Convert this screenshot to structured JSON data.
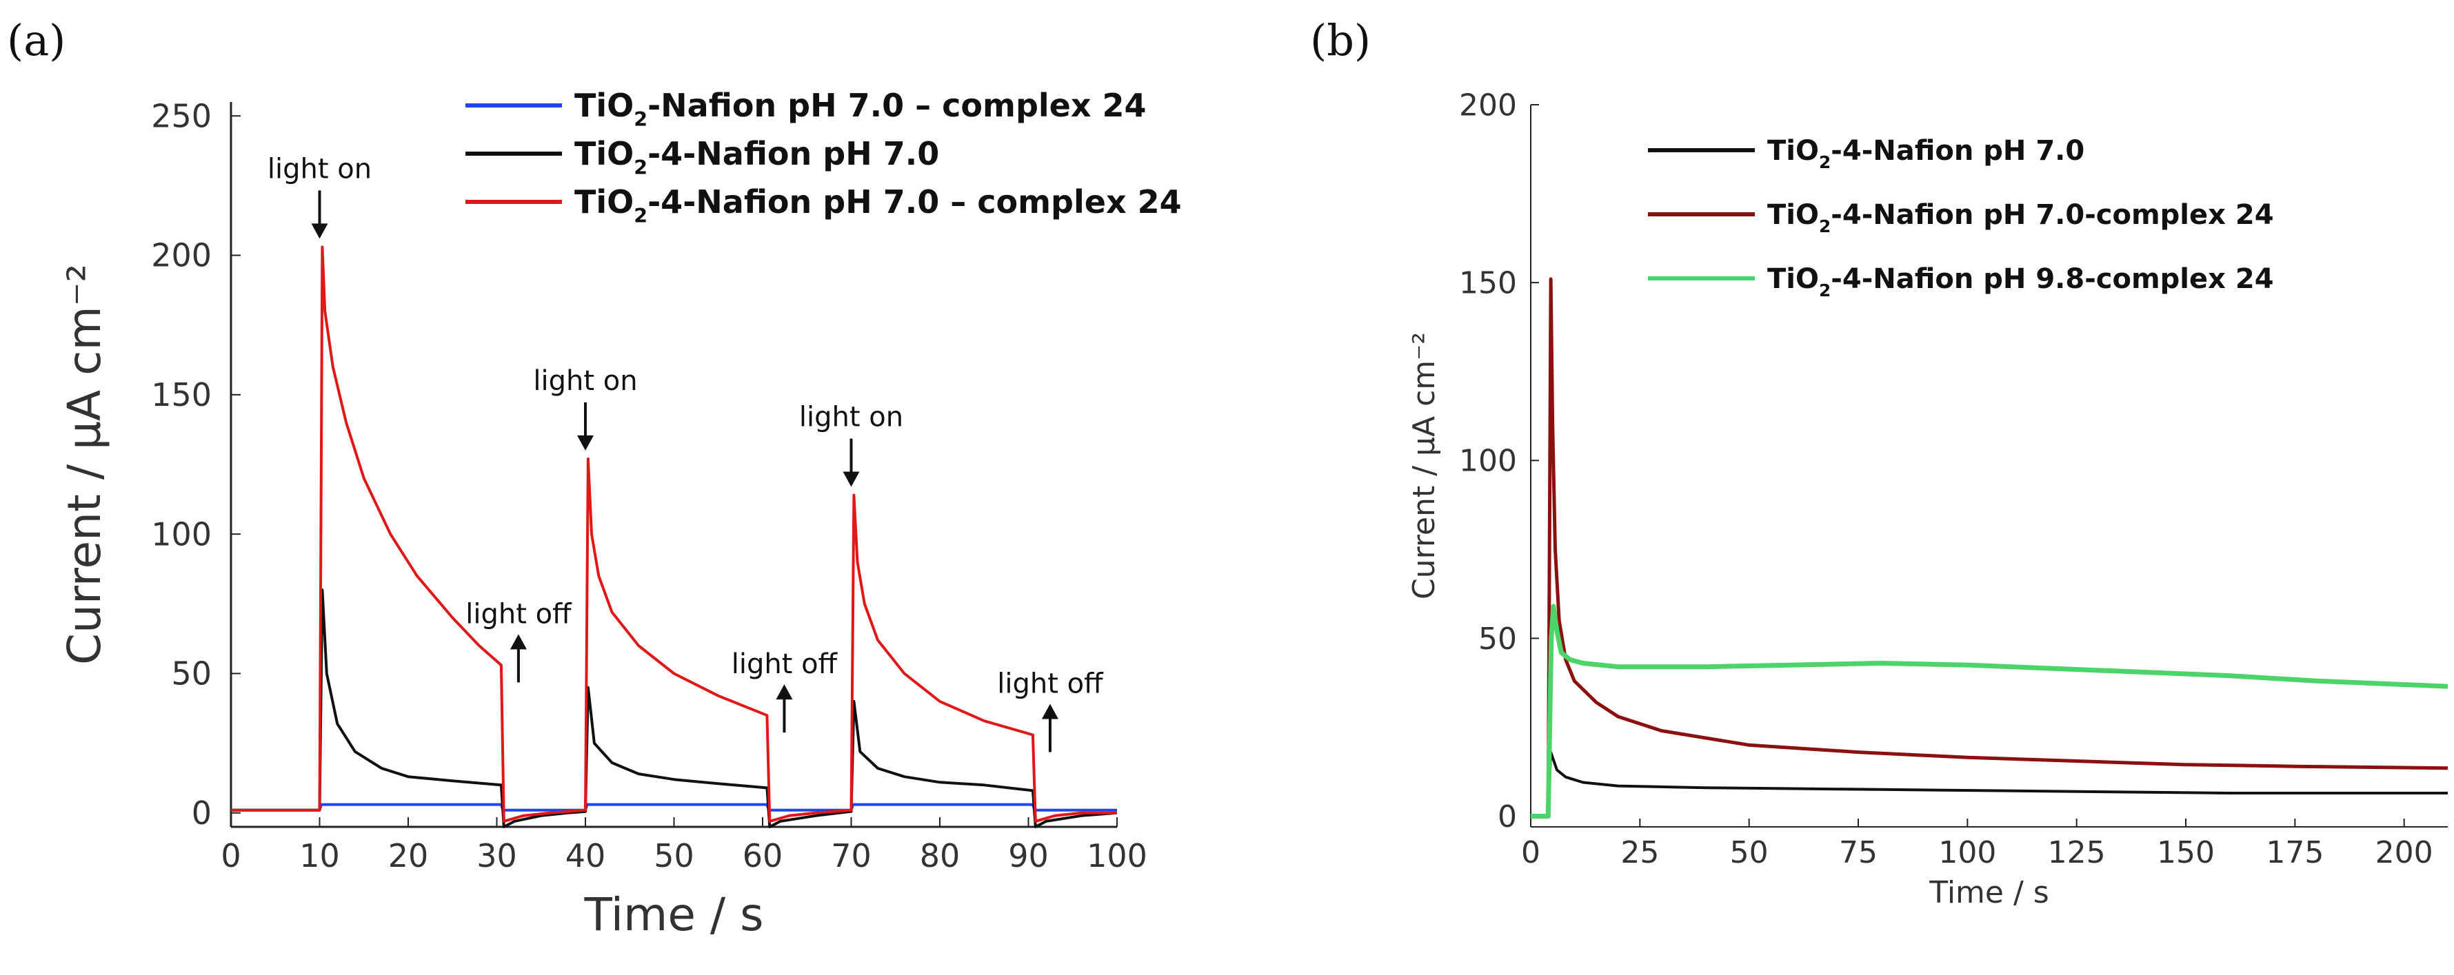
{
  "chart_data": [
    {
      "type": "line",
      "panel_label": "(a)",
      "title": "",
      "xlabel": "Time / s",
      "ylabel": "Current / µA cm⁻²",
      "xlim": [
        0,
        100
      ],
      "ylim": [
        -5,
        255
      ],
      "xticks": [
        0,
        10,
        20,
        30,
        40,
        50,
        60,
        70,
        80,
        90,
        100
      ],
      "yticks": [
        0,
        50,
        100,
        150,
        200,
        250
      ],
      "grid": false,
      "legend_position": "top-right",
      "series": [
        {
          "name": "TiO₂-Nafion pH 7.0 – complex 24",
          "label_parts": [
            "TiO",
            "2",
            "-Nafion pH 7.0 – complex 24"
          ],
          "color": "#2244ee",
          "points": [
            [
              0,
              1
            ],
            [
              10,
              1
            ],
            [
              10.2,
              3
            ],
            [
              30.5,
              3
            ],
            [
              30.7,
              1
            ],
            [
              40,
              1
            ],
            [
              40.2,
              3
            ],
            [
              60.5,
              3
            ],
            [
              60.7,
              1
            ],
            [
              70,
              1
            ],
            [
              70.2,
              3
            ],
            [
              90.5,
              3
            ],
            [
              90.7,
              1
            ],
            [
              100,
              1
            ]
          ]
        },
        {
          "name": "TiO₂-4-Nafion pH 7.0",
          "label_parts": [
            "TiO",
            "2",
            "-4-Nafion pH 7.0"
          ],
          "color": "#111111",
          "points": [
            [
              0,
              1
            ],
            [
              10,
              1
            ],
            [
              10.3,
              80
            ],
            [
              10.8,
              50
            ],
            [
              12,
              32
            ],
            [
              14,
              22
            ],
            [
              17,
              16
            ],
            [
              20,
              13
            ],
            [
              25,
              11.5
            ],
            [
              30.5,
              10
            ],
            [
              30.8,
              -5
            ],
            [
              32,
              -3
            ],
            [
              35,
              -1
            ],
            [
              38,
              0
            ],
            [
              40,
              0.5
            ],
            [
              40.3,
              45
            ],
            [
              41,
              25
            ],
            [
              43,
              18
            ],
            [
              46,
              14
            ],
            [
              50,
              12
            ],
            [
              55,
              10.5
            ],
            [
              60.5,
              9
            ],
            [
              60.8,
              -5
            ],
            [
              62,
              -3
            ],
            [
              66,
              -1
            ],
            [
              70,
              0.5
            ],
            [
              70.3,
              40
            ],
            [
              71,
              22
            ],
            [
              73,
              16
            ],
            [
              76,
              13
            ],
            [
              80,
              11
            ],
            [
              85,
              10
            ],
            [
              90.5,
              8
            ],
            [
              90.8,
              -5
            ],
            [
              92,
              -3
            ],
            [
              96,
              -1
            ],
            [
              100,
              0
            ]
          ]
        },
        {
          "name": "TiO₂-4-Nafion pH 7.0 – complex 24",
          "label_parts": [
            "TiO",
            "2",
            "-4-Nafion pH 7.0 – complex 24"
          ],
          "color": "#e01818",
          "points": [
            [
              0,
              1
            ],
            [
              10,
              1
            ],
            [
              10.3,
              203
            ],
            [
              10.6,
              180
            ],
            [
              11.5,
              160
            ],
            [
              13,
              140
            ],
            [
              15,
              120
            ],
            [
              18,
              100
            ],
            [
              21,
              85
            ],
            [
              25,
              70
            ],
            [
              28,
              60
            ],
            [
              30.5,
              53
            ],
            [
              30.8,
              -3
            ],
            [
              33,
              -1
            ],
            [
              36,
              0
            ],
            [
              40,
              1
            ],
            [
              40.3,
              127
            ],
            [
              40.7,
              100
            ],
            [
              41.5,
              85
            ],
            [
              43,
              72
            ],
            [
              46,
              60
            ],
            [
              50,
              50
            ],
            [
              55,
              42
            ],
            [
              60.5,
              35
            ],
            [
              60.8,
              -3
            ],
            [
              63,
              -1
            ],
            [
              66,
              0
            ],
            [
              70,
              1
            ],
            [
              70.3,
              114
            ],
            [
              70.7,
              90
            ],
            [
              71.5,
              75
            ],
            [
              73,
              62
            ],
            [
              76,
              50
            ],
            [
              80,
              40
            ],
            [
              85,
              33
            ],
            [
              90.5,
              28
            ],
            [
              90.8,
              -3
            ],
            [
              93,
              -1
            ],
            [
              96,
              0
            ],
            [
              100,
              0
            ]
          ]
        }
      ],
      "annotations": [
        {
          "text": "light on",
          "x": 10,
          "y": 203,
          "arrow": "down"
        },
        {
          "text": "light off",
          "x": 30.5,
          "y": 53,
          "arrow": "up"
        },
        {
          "text": "light on",
          "x": 40,
          "y": 127,
          "arrow": "down"
        },
        {
          "text": "light off",
          "x": 60.5,
          "y": 35,
          "arrow": "up"
        },
        {
          "text": "light on",
          "x": 70,
          "y": 114,
          "arrow": "down"
        },
        {
          "text": "light off",
          "x": 90.5,
          "y": 28,
          "arrow": "up"
        }
      ]
    },
    {
      "type": "line",
      "panel_label": "(b)",
      "title": "",
      "xlabel": "Time / s",
      "ylabel": "Current / µA cm⁻²",
      "xlim": [
        0,
        210
      ],
      "ylim": [
        -3,
        200
      ],
      "xticks": [
        0,
        25,
        50,
        75,
        100,
        125,
        150,
        175,
        200
      ],
      "yticks": [
        0,
        50,
        100,
        150,
        200
      ],
      "grid": false,
      "legend_position": "top-right",
      "series": [
        {
          "name": "TiO₂-4-Nafion pH 7.0",
          "label_parts": [
            "TiO",
            "2",
            "-4-Nafion pH 7.0"
          ],
          "color": "#111111",
          "points": [
            [
              0,
              0
            ],
            [
              4,
              0
            ],
            [
              4.6,
              18
            ],
            [
              6,
              13
            ],
            [
              8,
              11
            ],
            [
              12,
              9.5
            ],
            [
              20,
              8.5
            ],
            [
              40,
              8
            ],
            [
              80,
              7.5
            ],
            [
              120,
              7
            ],
            [
              160,
              6.5
            ],
            [
              210,
              6.5
            ]
          ]
        },
        {
          "name": "TiO₂-4-Nafion pH 7.0-complex 24",
          "label_parts": [
            "TiO",
            "2",
            "-4-Nafion pH 7.0-complex 24"
          ],
          "color": "#8b1010",
          "points": [
            [
              0,
              0
            ],
            [
              4,
              0
            ],
            [
              4.6,
              151
            ],
            [
              5,
              110
            ],
            [
              5.6,
              75
            ],
            [
              6.5,
              55
            ],
            [
              8,
              44
            ],
            [
              10,
              38
            ],
            [
              15,
              32
            ],
            [
              20,
              28
            ],
            [
              30,
              24
            ],
            [
              50,
              20
            ],
            [
              75,
              18
            ],
            [
              100,
              16.5
            ],
            [
              125,
              15.5
            ],
            [
              150,
              14.5
            ],
            [
              175,
              14
            ],
            [
              210,
              13.5
            ]
          ]
        },
        {
          "name": "TiO₂-4-Nafion pH 9.8-complex 24",
          "label_parts": [
            "TiO",
            "2",
            "-4-Nafion pH 9.8-complex 24"
          ],
          "color": "#4cd46a",
          "points": [
            [
              0,
              0
            ],
            [
              4,
              0
            ],
            [
              4.7,
              50
            ],
            [
              5.2,
              59
            ],
            [
              6,
              52
            ],
            [
              7,
              46
            ],
            [
              9,
              44
            ],
            [
              12,
              43
            ],
            [
              20,
              42
            ],
            [
              40,
              42
            ],
            [
              60,
              42.5
            ],
            [
              80,
              43
            ],
            [
              100,
              42.5
            ],
            [
              120,
              41.5
            ],
            [
              140,
              40.5
            ],
            [
              160,
              39.5
            ],
            [
              180,
              38
            ],
            [
              200,
              37
            ],
            [
              210,
              36.5
            ]
          ]
        }
      ],
      "annotations": []
    }
  ]
}
